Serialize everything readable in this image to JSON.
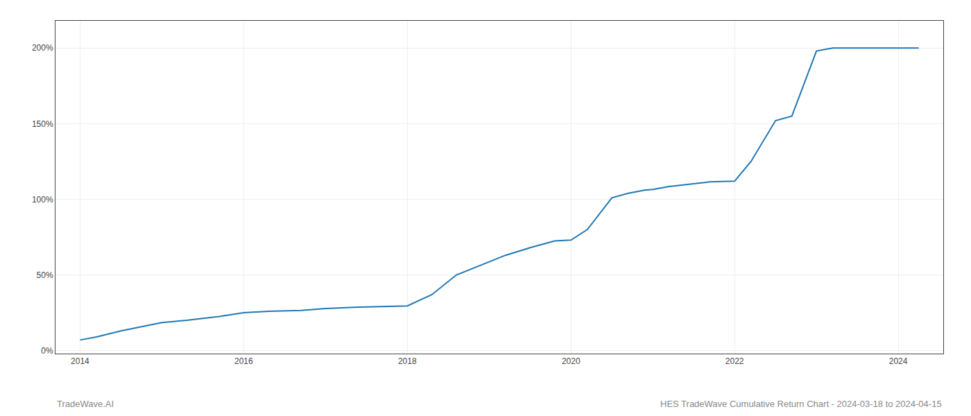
{
  "chart_data": {
    "type": "line",
    "x": [
      2014.0,
      2014.2,
      2014.5,
      2015.0,
      2015.3,
      2015.7,
      2016.0,
      2016.3,
      2016.7,
      2017.0,
      2017.3,
      2017.6,
      2018.0,
      2018.3,
      2018.6,
      2018.9,
      2019.2,
      2019.5,
      2019.8,
      2020.0,
      2020.2,
      2020.5,
      2020.7,
      2020.9,
      2021.0,
      2021.2,
      2021.5,
      2021.7,
      2022.0,
      2022.2,
      2022.5,
      2022.7,
      2023.0,
      2023.2,
      2023.5,
      2024.0,
      2024.25
    ],
    "values": [
      0.07,
      0.09,
      0.13,
      0.185,
      0.2,
      0.225,
      0.25,
      0.26,
      0.265,
      0.278,
      0.285,
      0.29,
      0.295,
      0.37,
      0.5,
      0.565,
      0.63,
      0.68,
      0.725,
      0.73,
      0.8,
      1.01,
      1.04,
      1.06,
      1.065,
      1.085,
      1.105,
      1.115,
      1.12,
      1.25,
      1.52,
      1.55,
      1.98,
      2.0,
      2.0,
      2.0,
      2.0
    ],
    "xlim": [
      2013.7,
      2024.55
    ],
    "ylim": [
      -0.02,
      2.18
    ],
    "xticks": [
      2014,
      2016,
      2018,
      2020,
      2022,
      2024
    ],
    "yticks": [
      {
        "value": 0,
        "label": "0%"
      },
      {
        "value": 0.5,
        "label": "50%"
      },
      {
        "value": 1.0,
        "label": "100%"
      },
      {
        "value": 1.5,
        "label": "150%"
      },
      {
        "value": 2.0,
        "label": "200%"
      }
    ],
    "grid": true,
    "annotations": [
      "TradeWave.AI",
      "HES TradeWave Cumulative Return Chart - 2024-03-18 to 2024-04-15"
    ]
  }
}
